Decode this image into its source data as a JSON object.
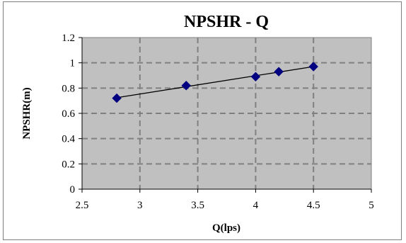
{
  "chart_data": {
    "type": "scatter",
    "title": "NPSHR - Q",
    "xlabel": "Q(lps)",
    "ylabel": "NPSHR(m)",
    "xlim": [
      2.5,
      5
    ],
    "ylim": [
      0,
      1.2
    ],
    "xticks": [
      2.5,
      3,
      3.5,
      4,
      4.5,
      5
    ],
    "yticks": [
      0,
      0.2,
      0.4,
      0.6,
      0.8,
      1,
      1.2
    ],
    "x_tick_labels": [
      "2.5",
      "3",
      "3.5",
      "4",
      "4.5",
      "5"
    ],
    "y_tick_labels": [
      "0",
      "0.2",
      "0.4",
      "0.6",
      "0.8",
      "1",
      "1.2"
    ],
    "grid": true,
    "legend": "none",
    "trendline": "linear",
    "series": [
      {
        "x": [
          2.8,
          3.4,
          4.0,
          4.2,
          4.5
        ],
        "y": [
          0.72,
          0.82,
          0.89,
          0.93,
          0.97
        ],
        "marker": "diamond",
        "color": "#000080"
      }
    ],
    "colors": {
      "plot_background": "#c0c0c0",
      "gridline": "#808080",
      "trendline": "#000000",
      "marker": "#000080"
    }
  }
}
